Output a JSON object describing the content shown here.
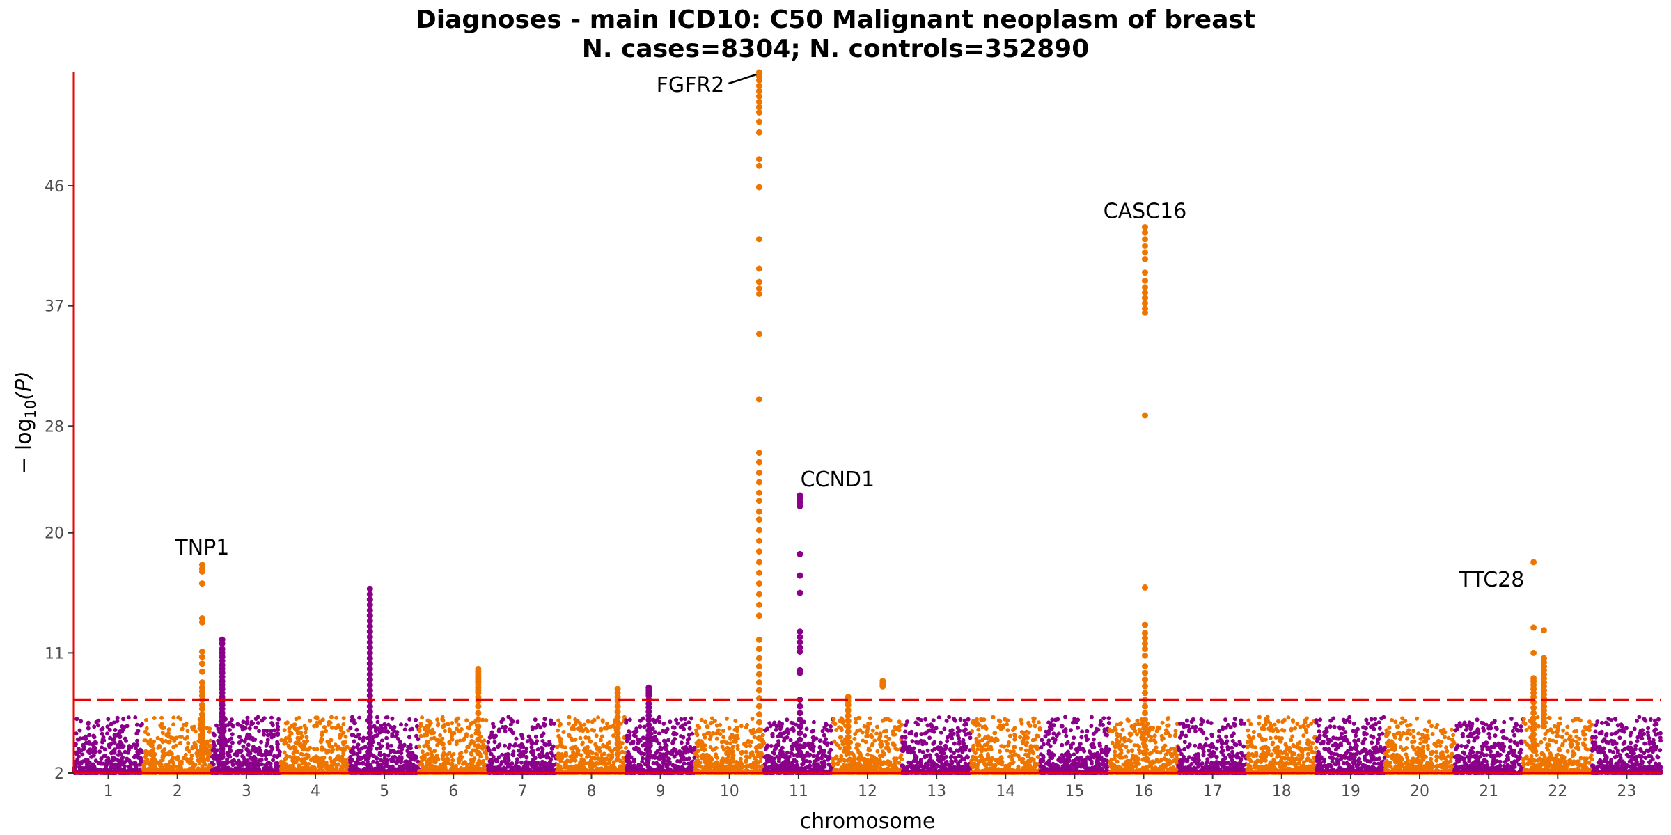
{
  "chart_data": {
    "type": "scatter",
    "title": "Diagnoses - main ICD10: C50 Malignant neoplasm of breast",
    "subtitle": "N. cases=8304; N. controls=352890",
    "xlabel": "chromosome",
    "ylabel_prefix": "− log",
    "ylabel_sub": "10",
    "ylabel_suffix": "(P)",
    "ylim": [
      2,
      54.5
    ],
    "y_ticks": [
      2,
      11,
      20,
      28,
      37,
      46
    ],
    "significance_threshold": 7.5,
    "grid": false,
    "colors": {
      "odd_chromosome": "#8B008B",
      "even_chromosome": "#EE7600",
      "threshold_line": "#EE0000",
      "axis_line": "#EE0000"
    },
    "chromosomes": [
      {
        "label": "1",
        "span": [
          0.0,
          1.0
        ],
        "tick": 0.5
      },
      {
        "label": "2",
        "span": [
          1.0,
          2.0
        ],
        "tick": 1.5
      },
      {
        "label": "3",
        "span": [
          2.0,
          3.0
        ],
        "tick": 2.5
      },
      {
        "label": "4",
        "span": [
          3.0,
          4.0
        ],
        "tick": 3.5
      },
      {
        "label": "5",
        "span": [
          4.0,
          5.0
        ],
        "tick": 4.5
      },
      {
        "label": "6",
        "span": [
          5.0,
          6.0
        ],
        "tick": 5.5
      },
      {
        "label": "7",
        "span": [
          6.0,
          7.0
        ],
        "tick": 6.5
      },
      {
        "label": "8",
        "span": [
          7.0,
          8.0
        ],
        "tick": 7.5
      },
      {
        "label": "9",
        "span": [
          8.0,
          9.0
        ],
        "tick": 8.5
      },
      {
        "label": "10",
        "span": [
          9.0,
          10.0
        ],
        "tick": 9.5
      },
      {
        "label": "11",
        "span": [
          10.0,
          11.0
        ],
        "tick": 10.5
      },
      {
        "label": "12",
        "span": [
          11.0,
          12.0
        ],
        "tick": 11.5
      },
      {
        "label": "13",
        "span": [
          12.0,
          13.0
        ],
        "tick": 12.5
      },
      {
        "label": "14",
        "span": [
          13.0,
          14.0
        ],
        "tick": 13.5
      },
      {
        "label": "15",
        "span": [
          14.0,
          15.0
        ],
        "tick": 14.5
      },
      {
        "label": "16",
        "span": [
          15.0,
          16.0
        ],
        "tick": 15.5
      },
      {
        "label": "17",
        "span": [
          16.0,
          17.0
        ],
        "tick": 16.5
      },
      {
        "label": "18",
        "span": [
          17.0,
          18.0
        ],
        "tick": 17.5
      },
      {
        "label": "19",
        "span": [
          18.0,
          19.0
        ],
        "tick": 18.5
      },
      {
        "label": "20",
        "span": [
          19.0,
          20.0
        ],
        "tick": 19.5
      },
      {
        "label": "21",
        "span": [
          20.0,
          21.0
        ],
        "tick": 20.5
      },
      {
        "label": "22",
        "span": [
          21.0,
          22.0
        ],
        "tick": 21.5
      },
      {
        "label": "23",
        "span": [
          22.0,
          23.0
        ],
        "tick": 22.5
      }
    ],
    "peaks": [
      {
        "chrom": "2",
        "pos": 0.86,
        "values": [
          17.6,
          17.3,
          17.1,
          16.2,
          13.6,
          13.3,
          11.1,
          10.7,
          10.2,
          9.6,
          8.8,
          8.4,
          8.1,
          7.8,
          7.5,
          7.1,
          6.8,
          6.4,
          6.1,
          5.8,
          5.5,
          5.2,
          4.9,
          4.6,
          4.3,
          4.0,
          3.8,
          3.6,
          3.4,
          3.2
        ]
      },
      {
        "chrom": "3",
        "pos": 0.15,
        "values": [
          12.0,
          11.7,
          11.3,
          11.0,
          10.7,
          10.4,
          10.1,
          9.8,
          9.5,
          9.2,
          8.9,
          8.6,
          8.3,
          8.0,
          7.7,
          7.4,
          7.1,
          6.8,
          6.5,
          6.2,
          5.9,
          5.6,
          5.3,
          5.0,
          4.7,
          4.4,
          4.1,
          3.8,
          3.5,
          3.2
        ]
      },
      {
        "chrom": "5",
        "pos": 0.29,
        "values": [
          15.8,
          15.4,
          15.0,
          14.6,
          14.2,
          13.8,
          13.4,
          13.0,
          12.6,
          12.2,
          11.8,
          11.4,
          11.0,
          10.6,
          10.2,
          9.8,
          9.4,
          9.0,
          8.6,
          8.2,
          7.8,
          7.4,
          7.0,
          6.6,
          6.2,
          5.8,
          5.4,
          5.0,
          4.6,
          4.2,
          3.8,
          3.4
        ]
      },
      {
        "chrom": "6",
        "pos": 0.86,
        "values": [
          9.8,
          9.6,
          9.4,
          9.2,
          9.0,
          8.8,
          8.6,
          8.4,
          8.2,
          8.0,
          7.7,
          7.4,
          7.0,
          6.5,
          6.0,
          5.5,
          5.0,
          4.5,
          4.0,
          3.5
        ]
      },
      {
        "chrom": "8",
        "pos": 0.88,
        "values": [
          8.3,
          8.0,
          7.7,
          7.4,
          7.0,
          6.6,
          6.2,
          5.8,
          5.4,
          5.0,
          4.6,
          4.2,
          3.8,
          3.4
        ]
      },
      {
        "chrom": "9",
        "pos": 0.33,
        "values": [
          8.4,
          8.2,
          8.0,
          7.8,
          7.5,
          7.2,
          6.9,
          6.6,
          6.3,
          6.0,
          5.6,
          5.2,
          4.8,
          4.4,
          4.0,
          3.6,
          3.2
        ]
      },
      {
        "chrom": "10",
        "pos": 0.93,
        "values": [
          54.5,
          54.2,
          53.9,
          53.5,
          53.1,
          52.7,
          52.3,
          51.9,
          51.5,
          50.8,
          50.0,
          48.0,
          47.5,
          45.9,
          42.0,
          39.8,
          38.8,
          38.3,
          37.9,
          34.9,
          30.0,
          26.0,
          25.3,
          24.5,
          23.8,
          23.0,
          22.4,
          21.6,
          21.0,
          20.2,
          19.4,
          18.6,
          17.8,
          17.0,
          16.2,
          15.4,
          14.6,
          13.8,
          12.0,
          11.3,
          10.6,
          10.0,
          9.4,
          8.8,
          8.2,
          7.6,
          7.0,
          6.4,
          5.8,
          5.2,
          4.6,
          4.0,
          3.4
        ]
      },
      {
        "chrom": "11",
        "pos": 0.52,
        "values": [
          22.8,
          22.6,
          22.3,
          22.0,
          18.4,
          16.8,
          15.5,
          12.6,
          12.2,
          11.8,
          11.4,
          11.1,
          9.7,
          9.5,
          7.5,
          7.0,
          6.5,
          6.0,
          5.5,
          5.0,
          4.5,
          4.0,
          3.5
        ]
      },
      {
        "chrom": "12",
        "pos": 0.22,
        "values": [
          7.7,
          7.4,
          7.1,
          6.7,
          6.3,
          5.9,
          5.5,
          5.1,
          4.7,
          4.3,
          3.9,
          3.5
        ]
      },
      {
        "chrom": "12",
        "pos": 0.72,
        "values": [
          8.9,
          8.7,
          8.5
        ]
      },
      {
        "chrom": "16",
        "pos": 0.52,
        "values": [
          42.9,
          42.5,
          42.0,
          41.5,
          41.0,
          40.5,
          39.5,
          38.9,
          38.4,
          38.0,
          37.6,
          37.2,
          36.8,
          36.5,
          28.8,
          15.9,
          13.1,
          12.5,
          12.1,
          11.7,
          11.3,
          10.8,
          10.0,
          9.5,
          9.0,
          8.5,
          8.0,
          7.5,
          7.0,
          6.5,
          6.0,
          5.5,
          5.0,
          4.5,
          4.0,
          3.5
        ]
      },
      {
        "chrom": "22",
        "pos": 0.15,
        "values": [
          17.8,
          12.9,
          11.0,
          9.1,
          8.9,
          8.6,
          8.3,
          8.0,
          7.7,
          7.3,
          6.9,
          6.5,
          6.1,
          5.7,
          5.3,
          4.9,
          4.5,
          4.1,
          3.7
        ]
      },
      {
        "chrom": "22",
        "pos": 0.3,
        "values": [
          12.7,
          10.6,
          10.3,
          10.0,
          9.7,
          9.4,
          9.1,
          8.8,
          8.5,
          8.2,
          7.9,
          7.6,
          7.3,
          7.0,
          6.7,
          6.4,
          6.1,
          5.8,
          5.5
        ]
      }
    ],
    "annotations": [
      {
        "label": "FGFR2",
        "chrom": "10",
        "pos": 0.93,
        "y": 54.5
      },
      {
        "label": "CASC16",
        "chrom": "16",
        "pos": 0.52,
        "y": 42.9
      },
      {
        "label": "CCND1",
        "chrom": "11",
        "pos": 0.52,
        "y": 22.8
      },
      {
        "label": "TNP1",
        "chrom": "2",
        "pos": 0.86,
        "y": 17.6
      },
      {
        "label": "TTC28",
        "chrom": "22",
        "pos": 0.15,
        "y": 17.8
      }
    ]
  }
}
